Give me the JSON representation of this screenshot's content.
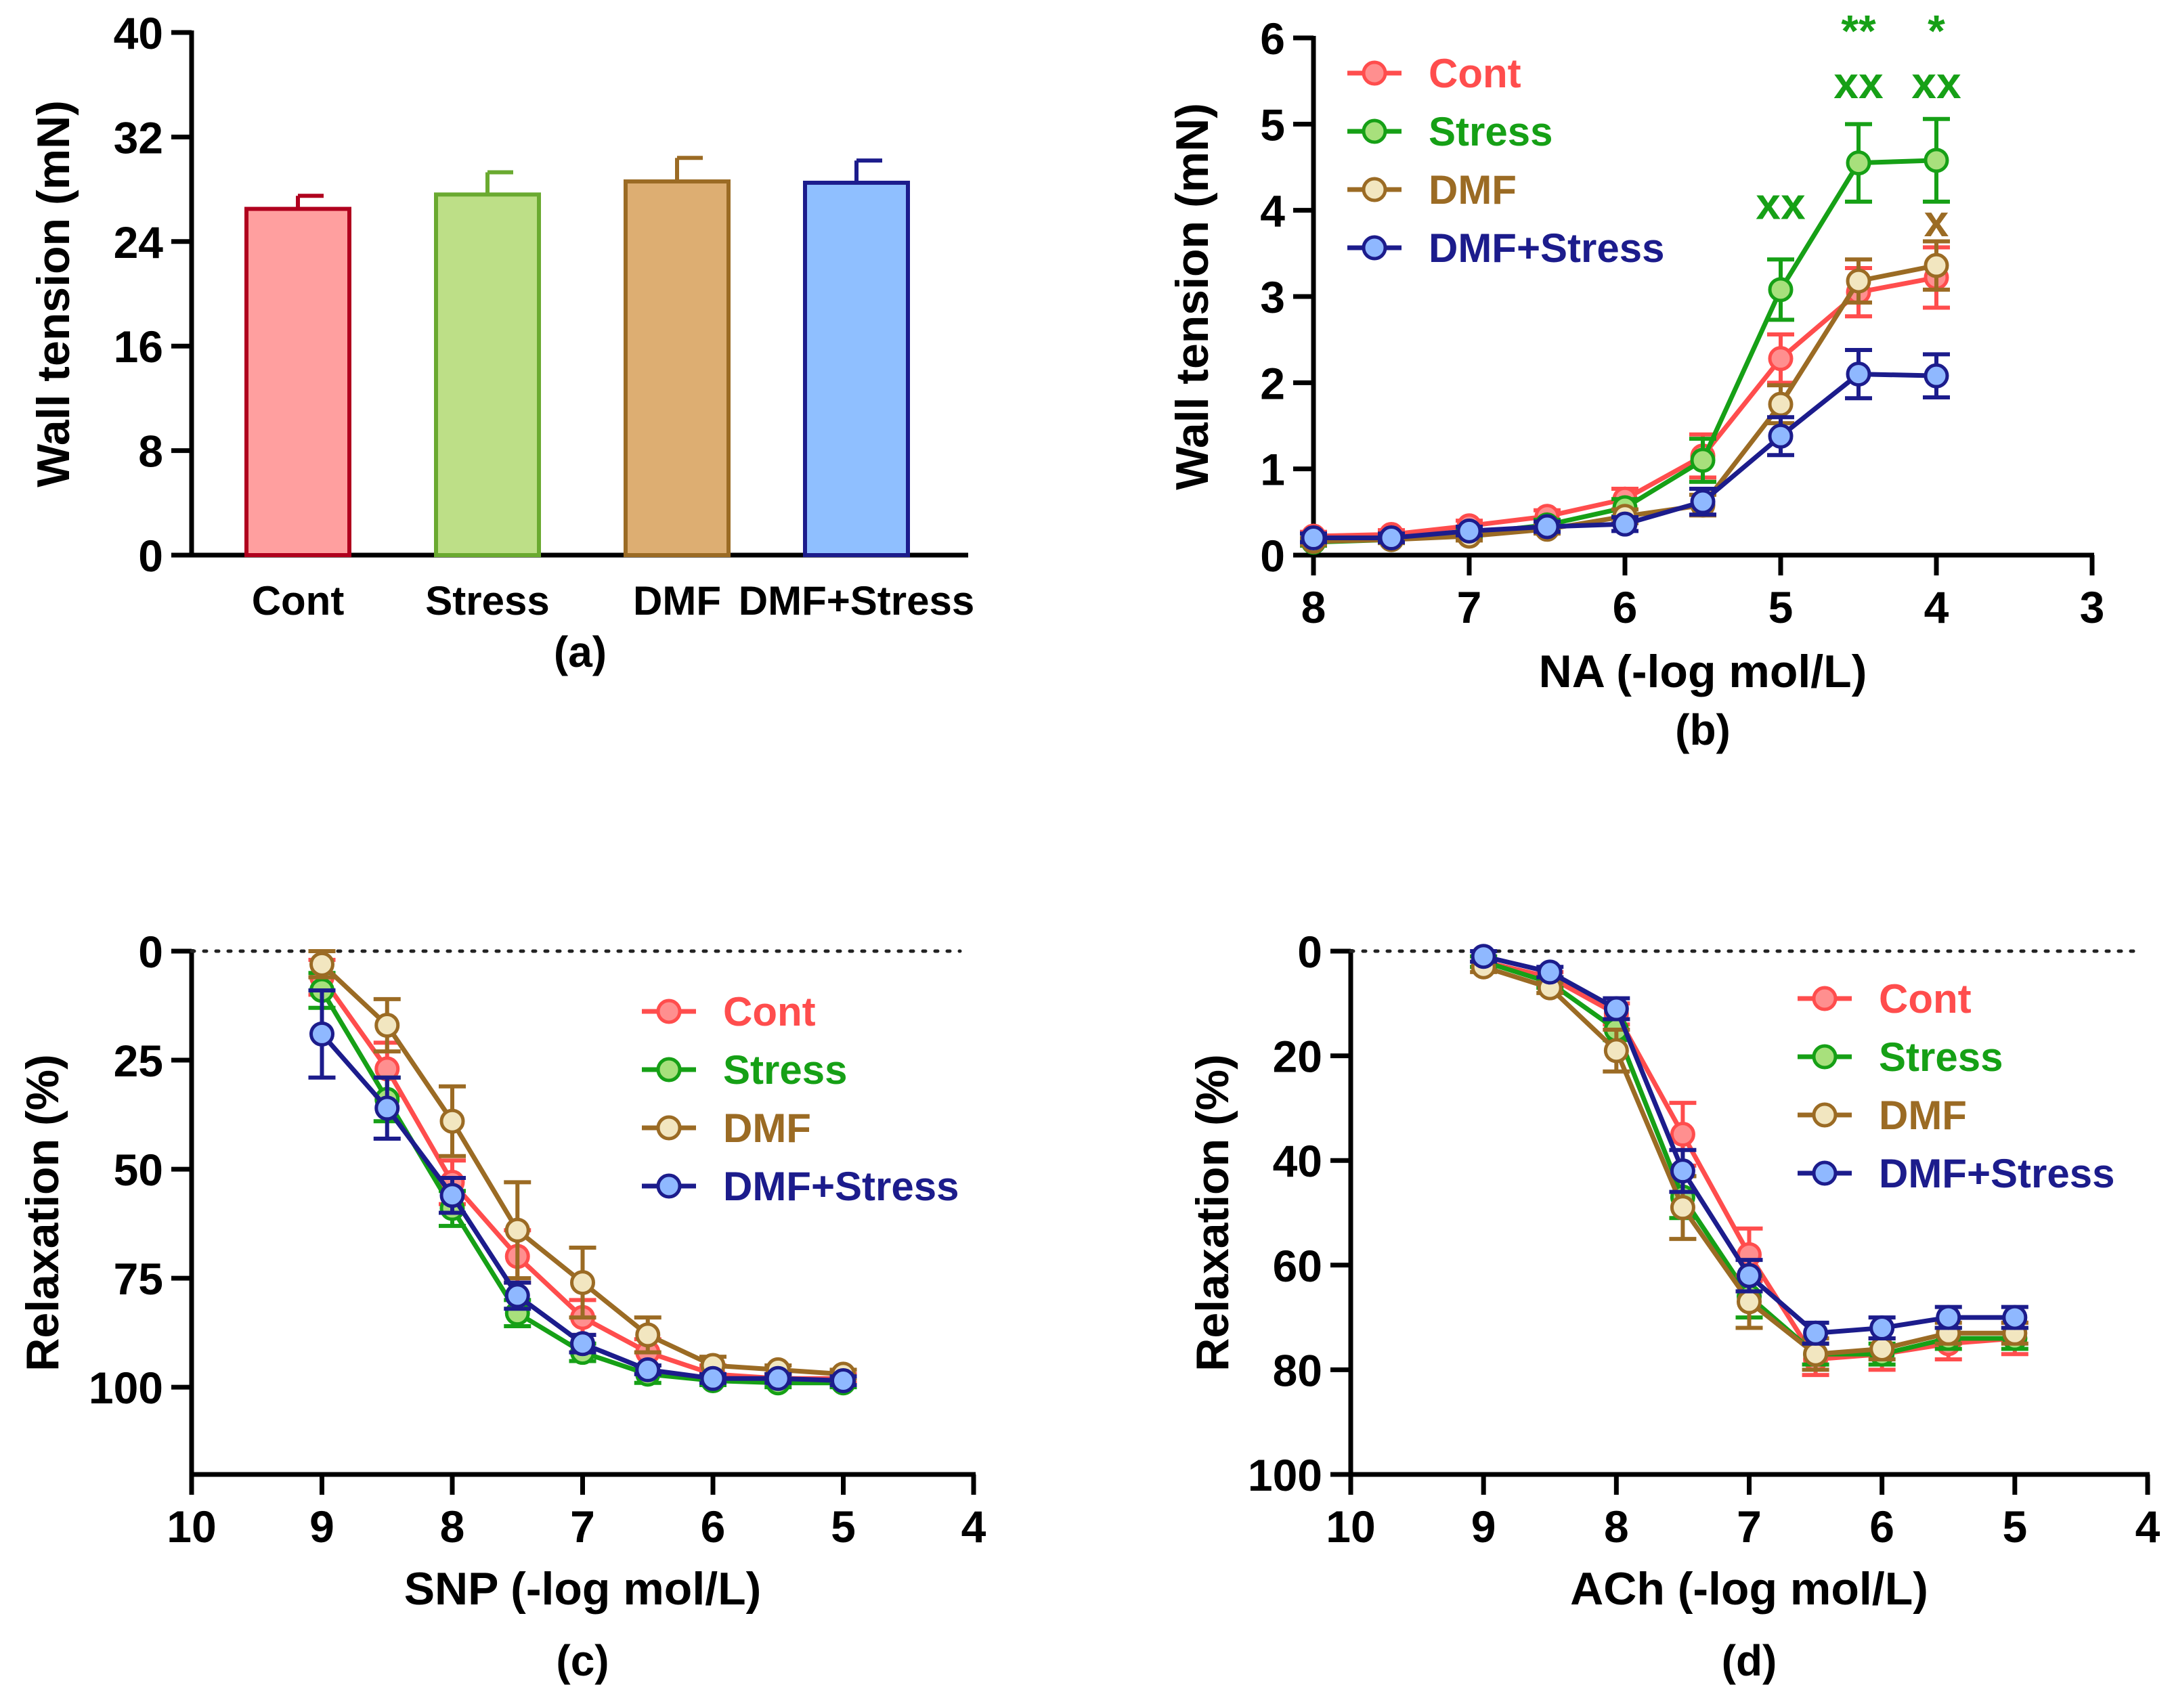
{
  "chart_data": [
    {
      "id": "a",
      "type": "bar",
      "panel_label": "(a)",
      "title": "",
      "xlabel": "",
      "ylabel": "Wall tension (mN)",
      "ylim": [
        0,
        40
      ],
      "yticks": [
        "0",
        "8",
        "16",
        "24",
        "32",
        "40"
      ],
      "categories": [
        "Cont",
        "Stress",
        "DMF",
        "DMF+Stress"
      ],
      "values": [
        26.5,
        27.6,
        28.6,
        28.5
      ],
      "errors": [
        1.0,
        1.7,
        1.8,
        1.7
      ],
      "fill_colors": [
        "#ff9f9f",
        "#bddf87",
        "#ddae72",
        "#8fbfff"
      ],
      "edge_colors": [
        "#b0001e",
        "#6aaa30",
        "#9b6b24",
        "#1c1c8c"
      ]
    },
    {
      "id": "b",
      "type": "line",
      "panel_label": "(b)",
      "title": "",
      "xlabel": "NA (-log mol/L)",
      "ylabel": "Wall tension (mN)",
      "xlim": [
        8,
        3
      ],
      "ylim": [
        0,
        6
      ],
      "xticks": [
        "8",
        "7",
        "6",
        "5",
        "4",
        "3"
      ],
      "yticks": [
        "0",
        "1",
        "2",
        "3",
        "4",
        "5",
        "6"
      ],
      "x": [
        8,
        7.5,
        7,
        6.5,
        6,
        5.5,
        5,
        4.5,
        4
      ],
      "legend_position": "top-left",
      "series": [
        {
          "name": "Cont",
          "line_color": "#ff4d4d",
          "marker_fill": "#ff8f8f",
          "text_color": "#ff4d4d",
          "values": [
            0.22,
            0.24,
            0.34,
            0.45,
            0.65,
            1.15,
            2.28,
            3.05,
            3.22
          ],
          "errors": [
            0.05,
            0.05,
            0.06,
            0.07,
            0.12,
            0.25,
            0.28,
            0.28,
            0.35
          ]
        },
        {
          "name": "Stress",
          "line_color": "#16a016",
          "marker_fill": "#a8e07c",
          "text_color": "#16a016",
          "values": [
            0.15,
            0.18,
            0.25,
            0.35,
            0.55,
            1.1,
            3.08,
            4.55,
            4.58
          ],
          "errors": [
            0.04,
            0.04,
            0.05,
            0.06,
            0.1,
            0.25,
            0.35,
            0.45,
            0.48
          ]
        },
        {
          "name": "DMF",
          "line_color": "#9b6b24",
          "marker_fill": "#f2e6c0",
          "text_color": "#9b6b24",
          "values": [
            0.16,
            0.18,
            0.22,
            0.3,
            0.45,
            0.58,
            1.75,
            3.18,
            3.36
          ],
          "errors": [
            0.04,
            0.04,
            0.05,
            0.05,
            0.08,
            0.12,
            0.22,
            0.25,
            0.28
          ]
        },
        {
          "name": "DMF+Stress",
          "line_color": "#1c1c8c",
          "marker_fill": "#8fb8ff",
          "text_color": "#1c1c8c",
          "values": [
            0.2,
            0.2,
            0.28,
            0.33,
            0.36,
            0.62,
            1.38,
            2.1,
            2.08
          ],
          "errors": [
            0.05,
            0.05,
            0.05,
            0.06,
            0.08,
            0.15,
            0.22,
            0.28,
            0.25
          ]
        }
      ],
      "annotations": [
        {
          "text": "xx",
          "x": 5,
          "y": 3.9,
          "color": "#16a016"
        },
        {
          "text": "xx",
          "x": 4.5,
          "y": 5.3,
          "color": "#16a016"
        },
        {
          "text": "xx",
          "x": 4,
          "y": 5.3,
          "color": "#16a016"
        },
        {
          "text": "**",
          "x": 4.5,
          "y": 5.9,
          "color": "#16a016"
        },
        {
          "text": "*",
          "x": 4,
          "y": 5.9,
          "color": "#16a016"
        },
        {
          "text": "x",
          "x": 4,
          "y": 3.7,
          "color": "#9b6b24"
        }
      ]
    },
    {
      "id": "c",
      "type": "line",
      "panel_label": "(c)",
      "title": "",
      "xlabel": "SNP (-log mol/L)",
      "ylabel": "Relaxation (%)",
      "xlim": [
        10,
        4
      ],
      "ylim": [
        0,
        120
      ],
      "y_inverted": true,
      "baseline_dotted": 0,
      "xticks": [
        "10",
        "9",
        "8",
        "7",
        "6",
        "5",
        "4"
      ],
      "yticks": [
        "0",
        "25",
        "50",
        "75",
        "100"
      ],
      "x": [
        9,
        8.5,
        8,
        7.5,
        7,
        6.5,
        6,
        5.5,
        5
      ],
      "legend_position": "top-right",
      "series": [
        {
          "name": "Cont",
          "line_color": "#ff4d4d",
          "marker_fill": "#ff8f8f",
          "text_color": "#ff4d4d",
          "values": [
            6,
            27,
            53,
            70,
            84,
            92,
            97,
            98,
            98
          ],
          "errors": [
            4,
            6,
            5,
            6,
            4,
            3,
            2,
            1,
            1
          ]
        },
        {
          "name": "Stress",
          "line_color": "#16a016",
          "marker_fill": "#a8e07c",
          "text_color": "#16a016",
          "values": [
            9,
            34,
            59,
            83,
            92,
            97,
            98.5,
            99,
            99
          ],
          "errors": [
            4,
            5,
            4,
            3,
            2,
            2,
            1,
            1,
            1
          ]
        },
        {
          "name": "DMF",
          "line_color": "#9b6b24",
          "marker_fill": "#f2e6c0",
          "text_color": "#9b6b24",
          "values": [
            3,
            17,
            39,
            64,
            76,
            88,
            95,
            96,
            97
          ],
          "errors": [
            3,
            6,
            8,
            11,
            8,
            4,
            2,
            1,
            1
          ]
        },
        {
          "name": "DMF+Stress",
          "line_color": "#1c1c8c",
          "marker_fill": "#8fb8ff",
          "text_color": "#1c1c8c",
          "values": [
            19,
            36,
            56,
            79,
            90,
            96,
            98,
            98,
            98.5
          ],
          "errors": [
            10,
            7,
            4,
            3,
            2,
            1,
            1,
            1,
            1
          ]
        }
      ]
    },
    {
      "id": "d",
      "type": "line",
      "panel_label": "(d)",
      "title": "",
      "xlabel": "ACh (-log mol/L)",
      "ylabel": "Relaxation (%)",
      "xlim": [
        10,
        4
      ],
      "ylim": [
        0,
        100
      ],
      "y_inverted": true,
      "baseline_dotted": 0,
      "xticks": [
        "10",
        "9",
        "8",
        "7",
        "6",
        "5",
        "4"
      ],
      "yticks": [
        "0",
        "20",
        "40",
        "60",
        "80",
        "100"
      ],
      "x": [
        9,
        8.5,
        8,
        7.5,
        7,
        6.5,
        6,
        5.5,
        5
      ],
      "legend_position": "top-right",
      "series": [
        {
          "name": "Cont",
          "line_color": "#ff4d4d",
          "marker_fill": "#ff8f8f",
          "text_color": "#ff4d4d",
          "values": [
            2,
            5,
            12,
            35,
            58,
            78,
            77,
            75,
            74
          ],
          "errors": [
            1,
            1,
            2,
            6,
            5,
            3,
            3,
            3,
            3
          ]
        },
        {
          "name": "Stress",
          "line_color": "#16a016",
          "marker_fill": "#a8e07c",
          "text_color": "#16a016",
          "values": [
            2,
            6,
            15,
            47,
            66,
            77,
            77,
            74,
            74
          ],
          "errors": [
            1,
            1,
            2,
            4,
            4,
            2,
            2,
            2,
            2
          ]
        },
        {
          "name": "DMF",
          "line_color": "#9b6b24",
          "marker_fill": "#f2e6c0",
          "text_color": "#9b6b24",
          "values": [
            3,
            7,
            19,
            49,
            67,
            77,
            76,
            73,
            73
          ],
          "errors": [
            1,
            1,
            4,
            6,
            5,
            3,
            2,
            2,
            2
          ]
        },
        {
          "name": "DMF+Stress",
          "line_color": "#1c1c8c",
          "marker_fill": "#8fb8ff",
          "text_color": "#1c1c8c",
          "values": [
            1,
            4,
            11,
            42,
            62,
            73,
            72,
            70,
            70
          ],
          "errors": [
            1,
            1,
            2,
            4,
            3,
            2,
            2,
            2,
            2
          ]
        }
      ]
    }
  ]
}
